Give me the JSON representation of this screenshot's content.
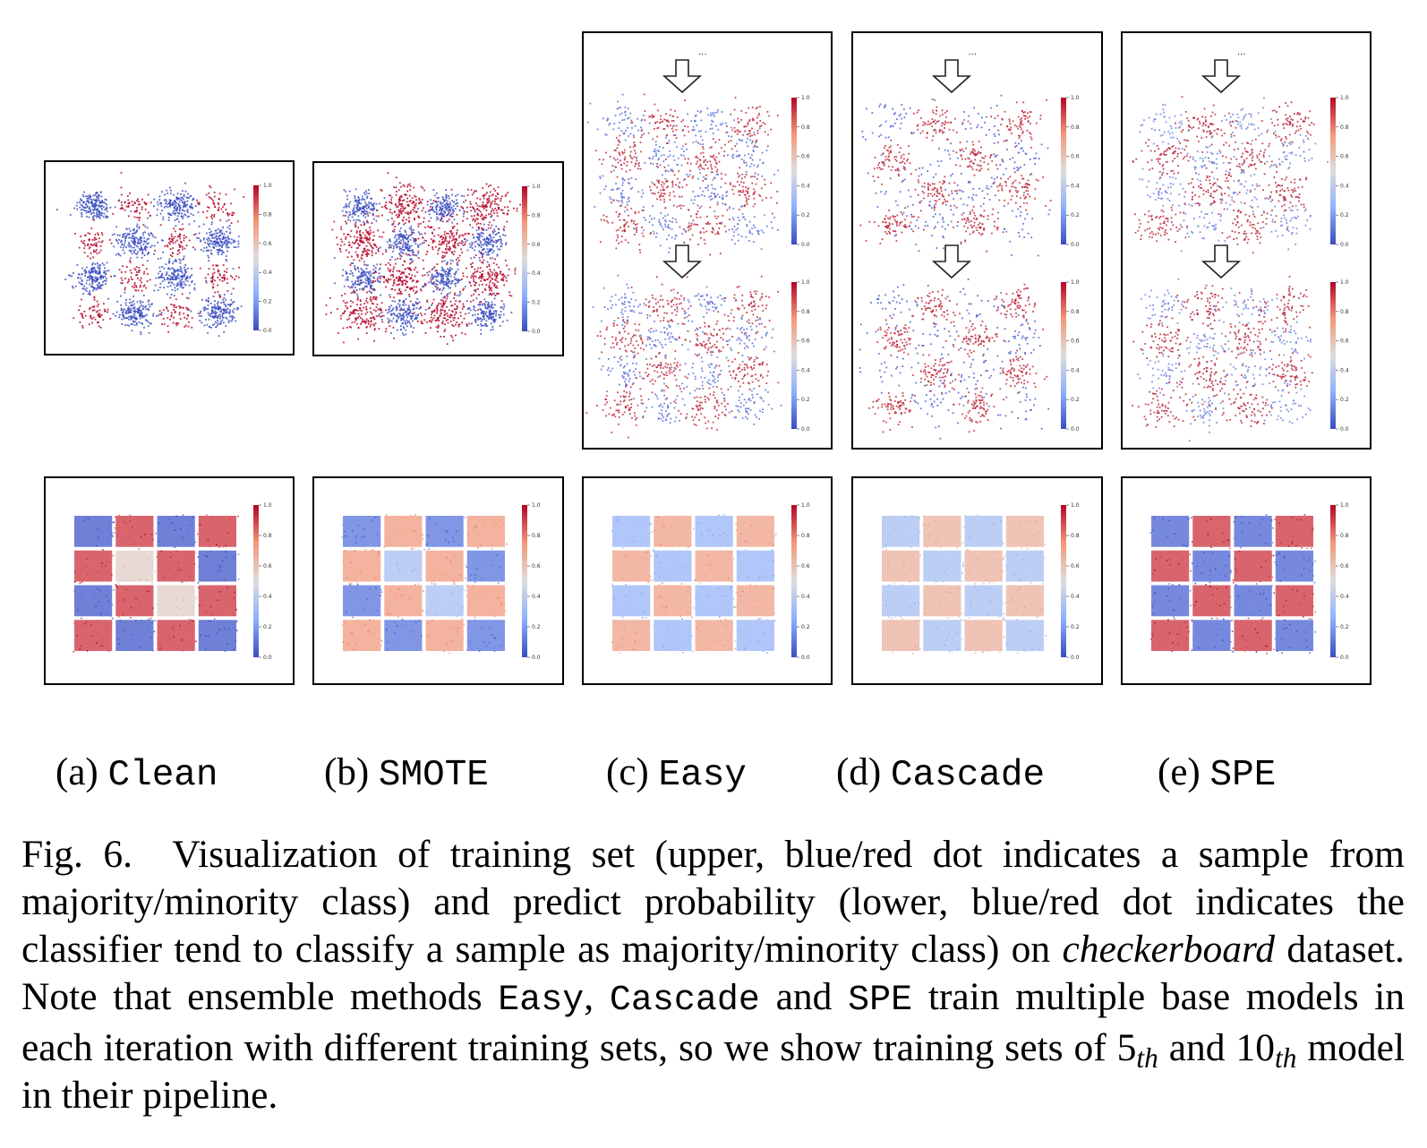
{
  "colorbar_ticks": [
    "0.0",
    "0.2",
    "0.4",
    "0.6",
    "0.8",
    "1.0"
  ],
  "colors": {
    "majority": "#3a4cc0",
    "minority": "#b40426",
    "border": "#000000"
  },
  "subfigures": [
    {
      "letter": "(a)",
      "method": "Clean"
    },
    {
      "letter": "(b)",
      "method": "SMOTE"
    },
    {
      "letter": "(c)",
      "method": "Easy"
    },
    {
      "letter": "(d)",
      "method": "Cascade"
    },
    {
      "letter": "(e)",
      "method": "SPE"
    }
  ],
  "ellipsis": "...",
  "caption": {
    "fig_label": "Fig. 6.",
    "text1": "Visualization of training set (upper, blue/red dot indicates a sample from majority/minority class) and predict probability (lower, blue/red dot indicates the classifier tend to classify a sample as majority/minority class) on",
    "dataset": "checkerboard",
    "text2": "dataset. Note that ensemble methods",
    "m1": "Easy",
    "sep1": ",",
    "m2": "Cascade",
    "and": "and",
    "m3": "SPE",
    "text3": "train multiple base models in each iteration with different training sets, so we show training sets of",
    "n1": "5",
    "sub1": "th",
    "and2": "and",
    "n2": "10",
    "sub2": "th",
    "text4": "model in their pipeline."
  }
}
